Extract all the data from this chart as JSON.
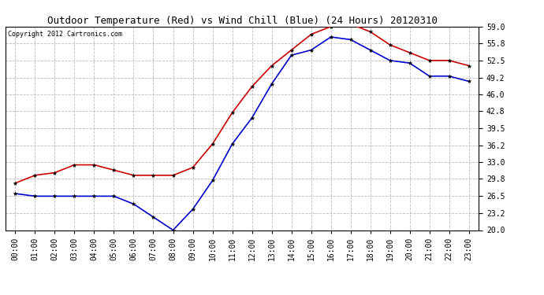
{
  "title": "Outdoor Temperature (Red) vs Wind Chill (Blue) (24 Hours) 20120310",
  "copyright_text": "Copyright 2012 Cartronics.com",
  "hours": [
    "00:00",
    "01:00",
    "02:00",
    "03:00",
    "04:00",
    "05:00",
    "06:00",
    "07:00",
    "08:00",
    "09:00",
    "10:00",
    "11:00",
    "12:00",
    "13:00",
    "14:00",
    "15:00",
    "16:00",
    "17:00",
    "18:00",
    "19:00",
    "20:00",
    "21:00",
    "22:00",
    "23:00"
  ],
  "temp_red": [
    29.0,
    30.5,
    31.0,
    32.5,
    32.5,
    31.5,
    30.5,
    30.5,
    30.5,
    32.0,
    36.5,
    42.5,
    47.5,
    51.5,
    54.5,
    57.5,
    59.0,
    59.5,
    58.0,
    55.5,
    54.0,
    52.5,
    52.5,
    51.5
  ],
  "wind_chill_blue": [
    27.0,
    26.5,
    26.5,
    26.5,
    26.5,
    26.5,
    25.0,
    22.5,
    20.0,
    24.0,
    29.5,
    36.5,
    41.5,
    48.0,
    53.5,
    54.5,
    57.0,
    56.5,
    54.5,
    52.5,
    52.0,
    49.5,
    49.5,
    48.5
  ],
  "yticks": [
    20.0,
    23.2,
    26.5,
    29.8,
    33.0,
    36.2,
    39.5,
    42.8,
    46.0,
    49.2,
    52.5,
    55.8,
    59.0
  ],
  "ymin": 20.0,
  "ymax": 59.0,
  "red_color": "#cc0000",
  "blue_color": "#0000cc",
  "bg_color": "#ffffff",
  "plot_bg_color": "#ffffff",
  "grid_color": "#bbbbbb",
  "title_fontsize": 9,
  "copyright_fontsize": 6,
  "tick_fontsize": 7,
  "linewidth": 1.2,
  "markersize": 3.5
}
